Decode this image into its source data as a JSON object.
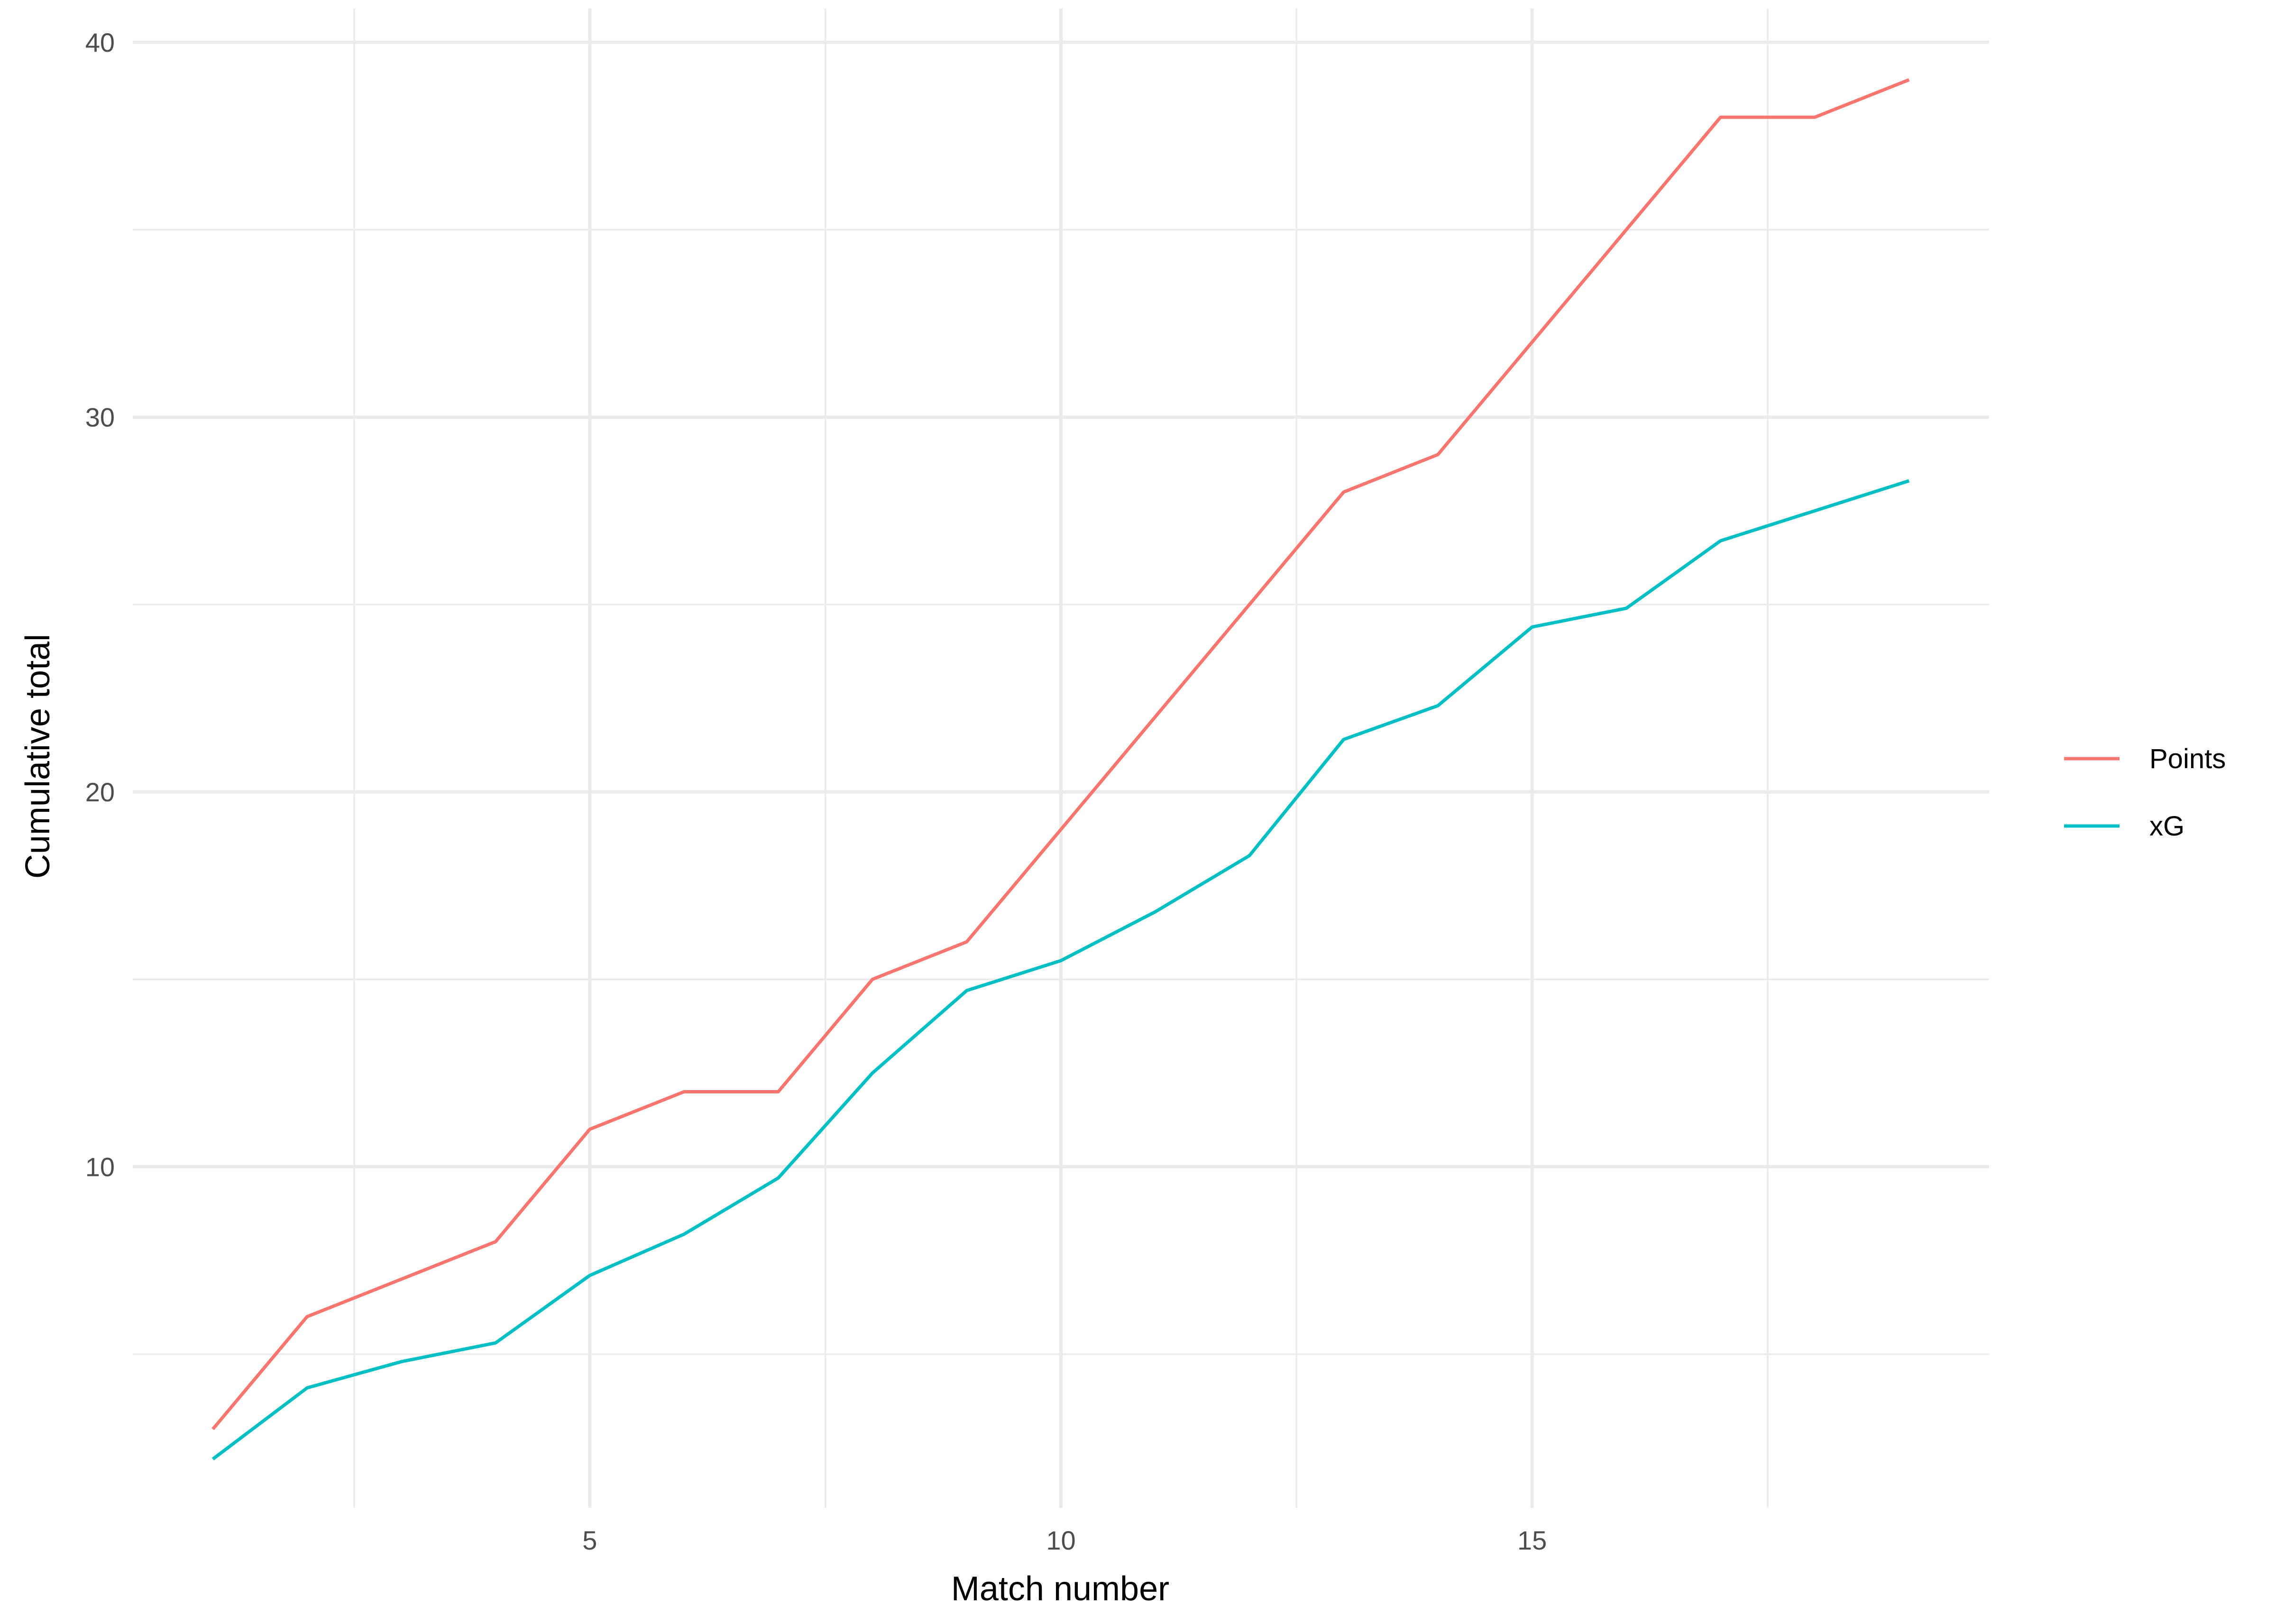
{
  "chart_data": {
    "type": "line",
    "title": "",
    "xlabel": "Match number",
    "ylabel": "Cumulative total",
    "x": [
      1,
      2,
      3,
      4,
      5,
      6,
      7,
      8,
      9,
      10,
      11,
      12,
      13,
      14,
      15,
      16,
      17,
      18,
      19
    ],
    "series": [
      {
        "name": "Points",
        "color": "#F8766D",
        "values": [
          3,
          6,
          7,
          8,
          11,
          12,
          12,
          15,
          16,
          19,
          22,
          25,
          28,
          29,
          32,
          35,
          38,
          38,
          39
        ]
      },
      {
        "name": "xG",
        "color": "#00BFC4",
        "values": [
          2.2,
          4.1,
          4.8,
          5.3,
          7.1,
          8.2,
          9.7,
          12.5,
          14.7,
          15.5,
          16.8,
          18.3,
          21.4,
          22.3,
          24.4,
          24.9,
          26.7,
          27.5,
          28.3
        ]
      }
    ],
    "xlim": [
      0.15,
      19.85
    ],
    "ylim": [
      0.9,
      40.9
    ],
    "x_ticks": [
      5,
      10,
      15
    ],
    "x_tick_labels": [
      "5",
      "10",
      "15"
    ],
    "x_minor_ticks": [
      2.5,
      7.5,
      12.5,
      17.5
    ],
    "y_ticks": [
      10,
      20,
      30,
      40
    ],
    "y_tick_labels": [
      "10",
      "20",
      "30",
      "40"
    ],
    "y_minor_ticks": [
      5,
      15,
      25,
      35
    ],
    "grid": true,
    "legend_position": "right"
  }
}
